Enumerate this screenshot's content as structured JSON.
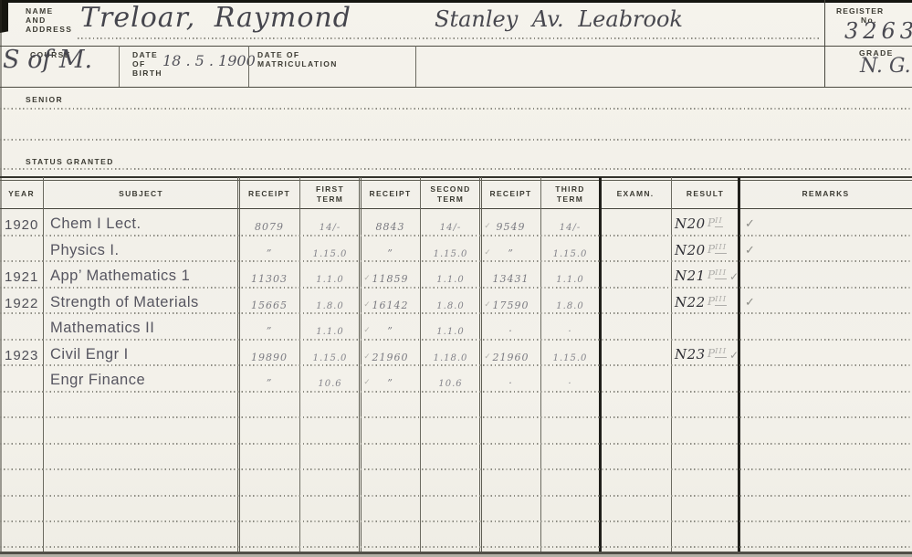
{
  "card": {
    "labels": {
      "name1": "NAME",
      "name2": "AND",
      "name3": "ADDRESS",
      "register1": "REGISTER",
      "register2": "No.",
      "course": "COURSE",
      "dob1": "DATE",
      "dob2": "OF",
      "dob3": "BIRTH",
      "matric1": "DATE OF",
      "matric2": "MATRICULATION",
      "grade": "GRADE",
      "senior": "SENIOR",
      "status": "STATUS GRANTED"
    },
    "values": {
      "name": "Treloar, Raymond",
      "address": "Stanley Av. Leabrook",
      "register_no": "3263",
      "course": "S of M.",
      "date_of_birth": "18 . 5 . 1900",
      "date_of_matriculation": "",
      "grade": "N. G.",
      "senior": "",
      "status_granted": ""
    }
  },
  "table": {
    "headers": [
      "YEAR",
      "SUBJECT",
      "RECEIPT",
      "FIRST TERM",
      "RECEIPT",
      "SECOND TERM",
      "RECEIPT",
      "THIRD TERM",
      "EXAMN.",
      "RESULT",
      "REMARKS"
    ],
    "rows": [
      {
        "year": "1920",
        "subject": "Chem I Lect.",
        "r1": "8079",
        "t1": "14/-",
        "r2": "8843",
        "t2": "14/-",
        "r3": "9549",
        "t3": "14/-",
        "tick2": false,
        "tick3": true,
        "examn": "",
        "result": "N20",
        "grade_p": "P",
        "grade_n": "II",
        "result_tick": "",
        "remark": "✓"
      },
      {
        "year": "",
        "subject": "Physics I.",
        "r1": "”",
        "t1": "1.15.0",
        "r2": "”",
        "t2": "1.15.0",
        "r3": "”",
        "t3": "1.15.0",
        "tick2": false,
        "tick3": true,
        "examn": "",
        "result": "N20",
        "grade_p": "P",
        "grade_n": "III",
        "result_tick": "",
        "remark": "✓"
      },
      {
        "year": "1921",
        "subject": "App’ Mathematics 1",
        "r1": "11303",
        "t1": "1.1.0",
        "r2": "11859",
        "t2": "1.1.0",
        "r3": "13431",
        "t3": "1.1.0",
        "tick2": true,
        "tick3": false,
        "examn": "",
        "result": "N21",
        "grade_p": "P",
        "grade_n": "III",
        "result_tick": "✓",
        "remark": ""
      },
      {
        "year": "1922",
        "subject": "Strength of Materials",
        "r1": "15665",
        "t1": "1.8.0",
        "r2": "16142",
        "t2": "1.8.0",
        "r3": "17590",
        "t3": "1.8.0",
        "tick2": true,
        "tick3": true,
        "examn": "",
        "result": "N22",
        "grade_p": "P",
        "grade_n": "III",
        "result_tick": "",
        "remark": "✓"
      },
      {
        "year": "",
        "subject": "Mathematics II",
        "r1": "”",
        "t1": "1.1.0",
        "r2": "”",
        "t2": "1.1.0",
        "r3": "·",
        "t3": "·",
        "tick2": true,
        "tick3": false,
        "examn": "",
        "result": "",
        "grade_p": "",
        "grade_n": "",
        "result_tick": "",
        "remark": ""
      },
      {
        "year": "1923",
        "subject": "Civil Engr I",
        "r1": "19890",
        "t1": "1.15.0",
        "r2": "21960",
        "t2": "1.18.0",
        "r3": "21960",
        "t3": "1.15.0",
        "tick2": true,
        "tick3": true,
        "examn": "",
        "result": "N23",
        "grade_p": "P",
        "grade_n": "III",
        "result_tick": "✓",
        "remark": ""
      },
      {
        "year": "",
        "subject": "Engr Finance",
        "r1": "”",
        "t1": "10.6",
        "r2": "”",
        "t2": "10.6",
        "r3": "·",
        "t3": "·",
        "tick2": true,
        "tick3": false,
        "examn": "",
        "result": "",
        "grade_p": "",
        "grade_n": "",
        "result_tick": "",
        "remark": ""
      }
    ]
  },
  "colors": {
    "paper": "#f3f1ea",
    "printed_ink": "#3c3b33",
    "pencil_dark": "#303036",
    "pencil": "#565560",
    "pencil_light": "#84848b",
    "pencil_faint": "#b4b3ae",
    "rule_dark": "#201f1b",
    "rule": "#6b6a60"
  }
}
